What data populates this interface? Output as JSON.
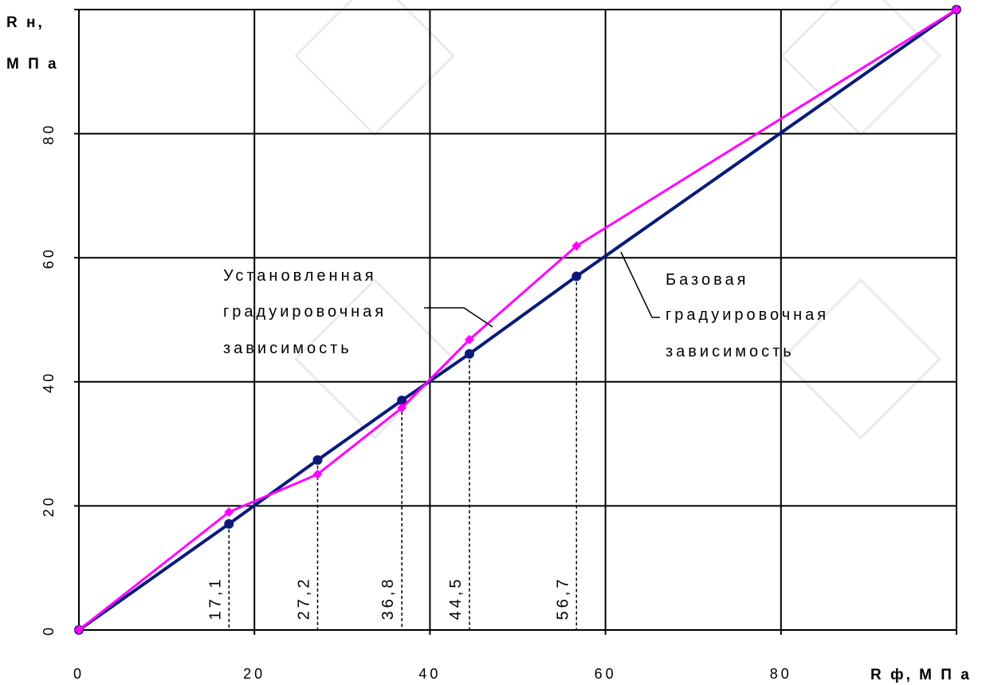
{
  "chart_data": {
    "type": "line",
    "title": "",
    "xlabel": "R ф, М П а",
    "ylabel_line1": "R н,",
    "ylabel_line2": "М П а",
    "xlim": [
      0,
      100
    ],
    "ylim": [
      0,
      100
    ],
    "x_ticks": [
      "0",
      "20",
      "40",
      "60",
      "80"
    ],
    "y_ticks": [
      "0",
      "20",
      "40",
      "60",
      "80"
    ],
    "grid": true,
    "series": [
      {
        "color": "#0a1a7a",
        "marker": "circle",
        "points": [
          [
            0,
            0
          ],
          [
            17.1,
            17.1
          ],
          [
            27.2,
            27.4
          ],
          [
            36.8,
            37.0
          ],
          [
            44.5,
            44.5
          ],
          [
            56.7,
            57.0
          ],
          [
            100,
            100
          ]
        ]
      },
      {
        "color": "#ff00ff",
        "marker": "diamond",
        "points": [
          [
            0,
            0
          ],
          [
            17.1,
            19.0
          ],
          [
            27.2,
            25.1
          ],
          [
            36.8,
            35.8
          ],
          [
            44.5,
            46.8
          ],
          [
            56.7,
            61.9
          ],
          [
            100,
            100
          ]
        ]
      }
    ],
    "drop_lines": [
      {
        "x": 17.1,
        "label": "17,1"
      },
      {
        "x": 27.2,
        "label": "27,2"
      },
      {
        "x": 36.8,
        "label": "36,8"
      },
      {
        "x": 44.5,
        "label": "44,5"
      },
      {
        "x": 56.7,
        "label": "56,7"
      }
    ],
    "annotations": {
      "installed": [
        "Установленная",
        "градуировочная",
        "зависимость"
      ],
      "base": [
        "Базовая",
        "градуировочная",
        "зависимость"
      ]
    }
  }
}
